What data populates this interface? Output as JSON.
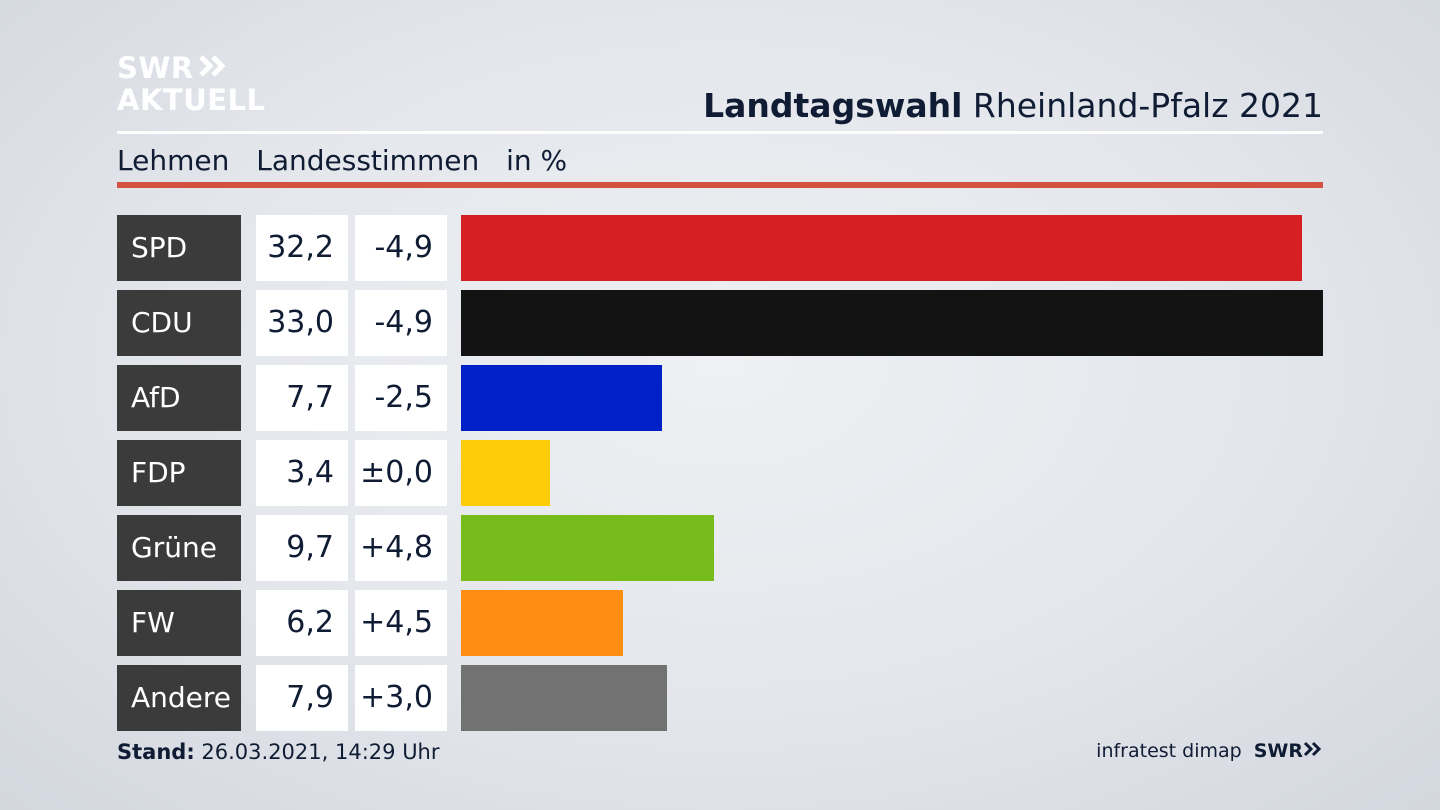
{
  "header": {
    "logo_line1": "SWR",
    "logo_line2": "AKTUELL",
    "title_bold": "Landtagswahl",
    "title_rest": "Rheinland-Pfalz 2021"
  },
  "subtitle": {
    "location": "Lehmen",
    "vote_type": "Landesstimmen",
    "unit": "in %"
  },
  "footer": {
    "stand_label": "Stand:",
    "stand_value": "26.03.2021, 14:29 Uhr",
    "source": "infratest dimap",
    "brand": "SWR"
  },
  "colors": {
    "accent_rule": "#d2523f",
    "party_label_bg": "#3b3b3b"
  },
  "chart_data": {
    "type": "bar",
    "orientation": "horizontal",
    "xlim": [
      0,
      33.0
    ],
    "categories": [
      "SPD",
      "CDU",
      "AfD",
      "FDP",
      "Grüne",
      "FW",
      "Andere"
    ],
    "values": [
      32.2,
      33.0,
      7.7,
      3.4,
      9.7,
      6.2,
      7.9
    ],
    "value_labels": [
      "32,2",
      "33,0",
      "7,7",
      "3,4",
      "9,7",
      "6,2",
      "7,9"
    ],
    "change_labels": [
      "-4,9",
      "-4,9",
      "-2,5",
      "±0,0",
      "+4,8",
      "+4,5",
      "+3,0"
    ],
    "changes": [
      -4.9,
      -4.9,
      -2.5,
      0.0,
      4.8,
      4.5,
      3.0
    ],
    "colors": [
      "#d51f20",
      "#131313",
      "#0021c8",
      "#fdcc0a",
      "#78bc1b",
      "#fe8d14",
      "#727272"
    ]
  }
}
